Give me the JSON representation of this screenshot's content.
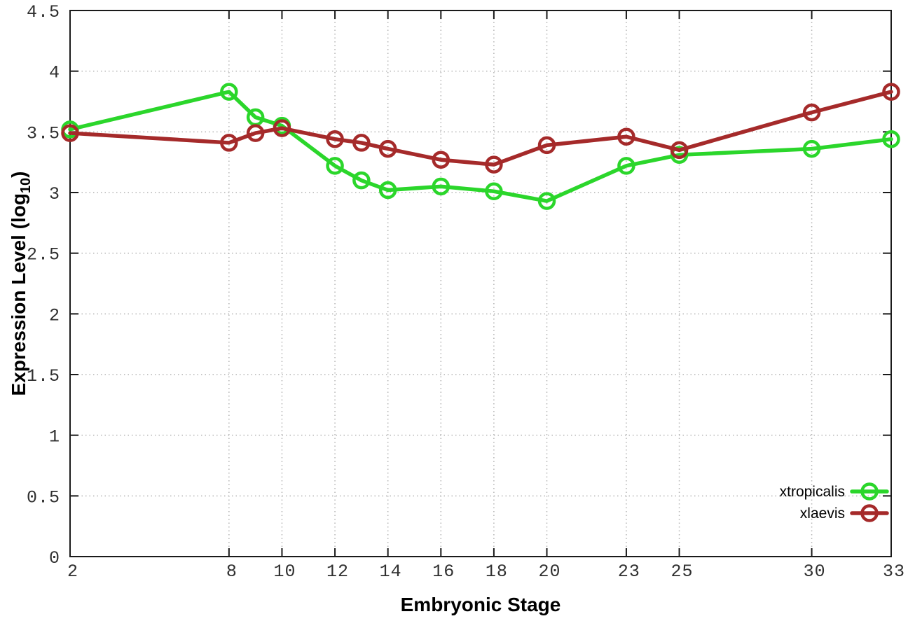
{
  "figure": {
    "background_color": "#ffffff",
    "border_color": "#1a1a1a",
    "grid_color": "#b4b4b4",
    "tick_color": "#1a1a1a",
    "tick_label_color": "#303030"
  },
  "chart_data": {
    "type": "line",
    "title": "",
    "xlabel": "Embryonic Stage",
    "ylabel": "Expression Level (log10)",
    "ylabel_parts": {
      "main": "Expression Level (log",
      "sub": "10",
      "close": ")"
    },
    "xlim": [
      2,
      33
    ],
    "ylim": [
      0,
      4.5
    ],
    "x_ticks": [
      2,
      8,
      10,
      12,
      14,
      16,
      18,
      20,
      23,
      25,
      30,
      33
    ],
    "y_ticks": [
      0,
      0.5,
      1,
      1.5,
      2,
      2.5,
      3,
      3.5,
      4,
      4.5
    ],
    "grid": true,
    "legend_position": "bottom-right",
    "x": [
      2,
      8,
      9,
      10,
      12,
      13,
      14,
      16,
      18,
      20,
      23,
      25,
      30,
      33
    ],
    "series": [
      {
        "name": "xtropicalis",
        "color": "#2bd62b",
        "marker": "open-circle",
        "values": [
          3.52,
          3.83,
          3.62,
          3.55,
          3.22,
          3.1,
          3.02,
          3.05,
          3.01,
          2.93,
          3.22,
          3.31,
          3.36,
          3.44
        ]
      },
      {
        "name": "xlaevis",
        "color": "#a52a2a",
        "marker": "open-circle",
        "values": [
          3.49,
          3.41,
          3.49,
          3.53,
          3.44,
          3.41,
          3.36,
          3.27,
          3.23,
          3.39,
          3.46,
          3.35,
          3.66,
          3.83
        ]
      }
    ]
  }
}
